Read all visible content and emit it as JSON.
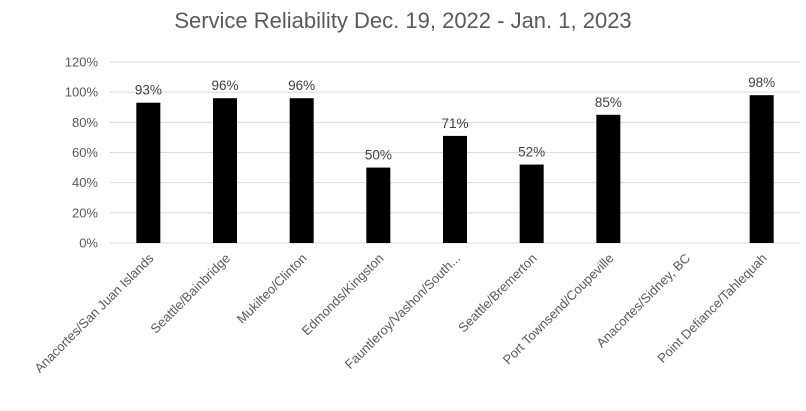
{
  "chart_data": {
    "type": "bar",
    "title": "Service Reliability Dec. 19, 2022 - Jan. 1, 2023",
    "xlabel": "",
    "ylabel": "",
    "ylim": [
      0,
      120
    ],
    "yticks": [
      0,
      20,
      40,
      60,
      80,
      100,
      120
    ],
    "ytick_labels": [
      "0%",
      "20%",
      "40%",
      "60%",
      "80%",
      "100%",
      "120%"
    ],
    "grid": true,
    "legend": "none",
    "bar_color": "#000000",
    "grid_color": "#d9d9d9",
    "categories": [
      "Anacortes/San Juan Islands",
      "Seattle/Bainbridge",
      "Mukilteo/Clinton",
      "Edmonds/Kingston",
      "Fauntleroy/Vashon/South...",
      "Seattle/Bremerton",
      "Port Townsend/Coupeville",
      "Anacortes/Sidney, BC",
      "Point Defiance/Tahlequah"
    ],
    "values": [
      93,
      96,
      96,
      50,
      71,
      52,
      85,
      null,
      98
    ],
    "data_labels": [
      "93%",
      "96%",
      "96%",
      "50%",
      "71%",
      "52%",
      "85%",
      "",
      "98%"
    ]
  }
}
